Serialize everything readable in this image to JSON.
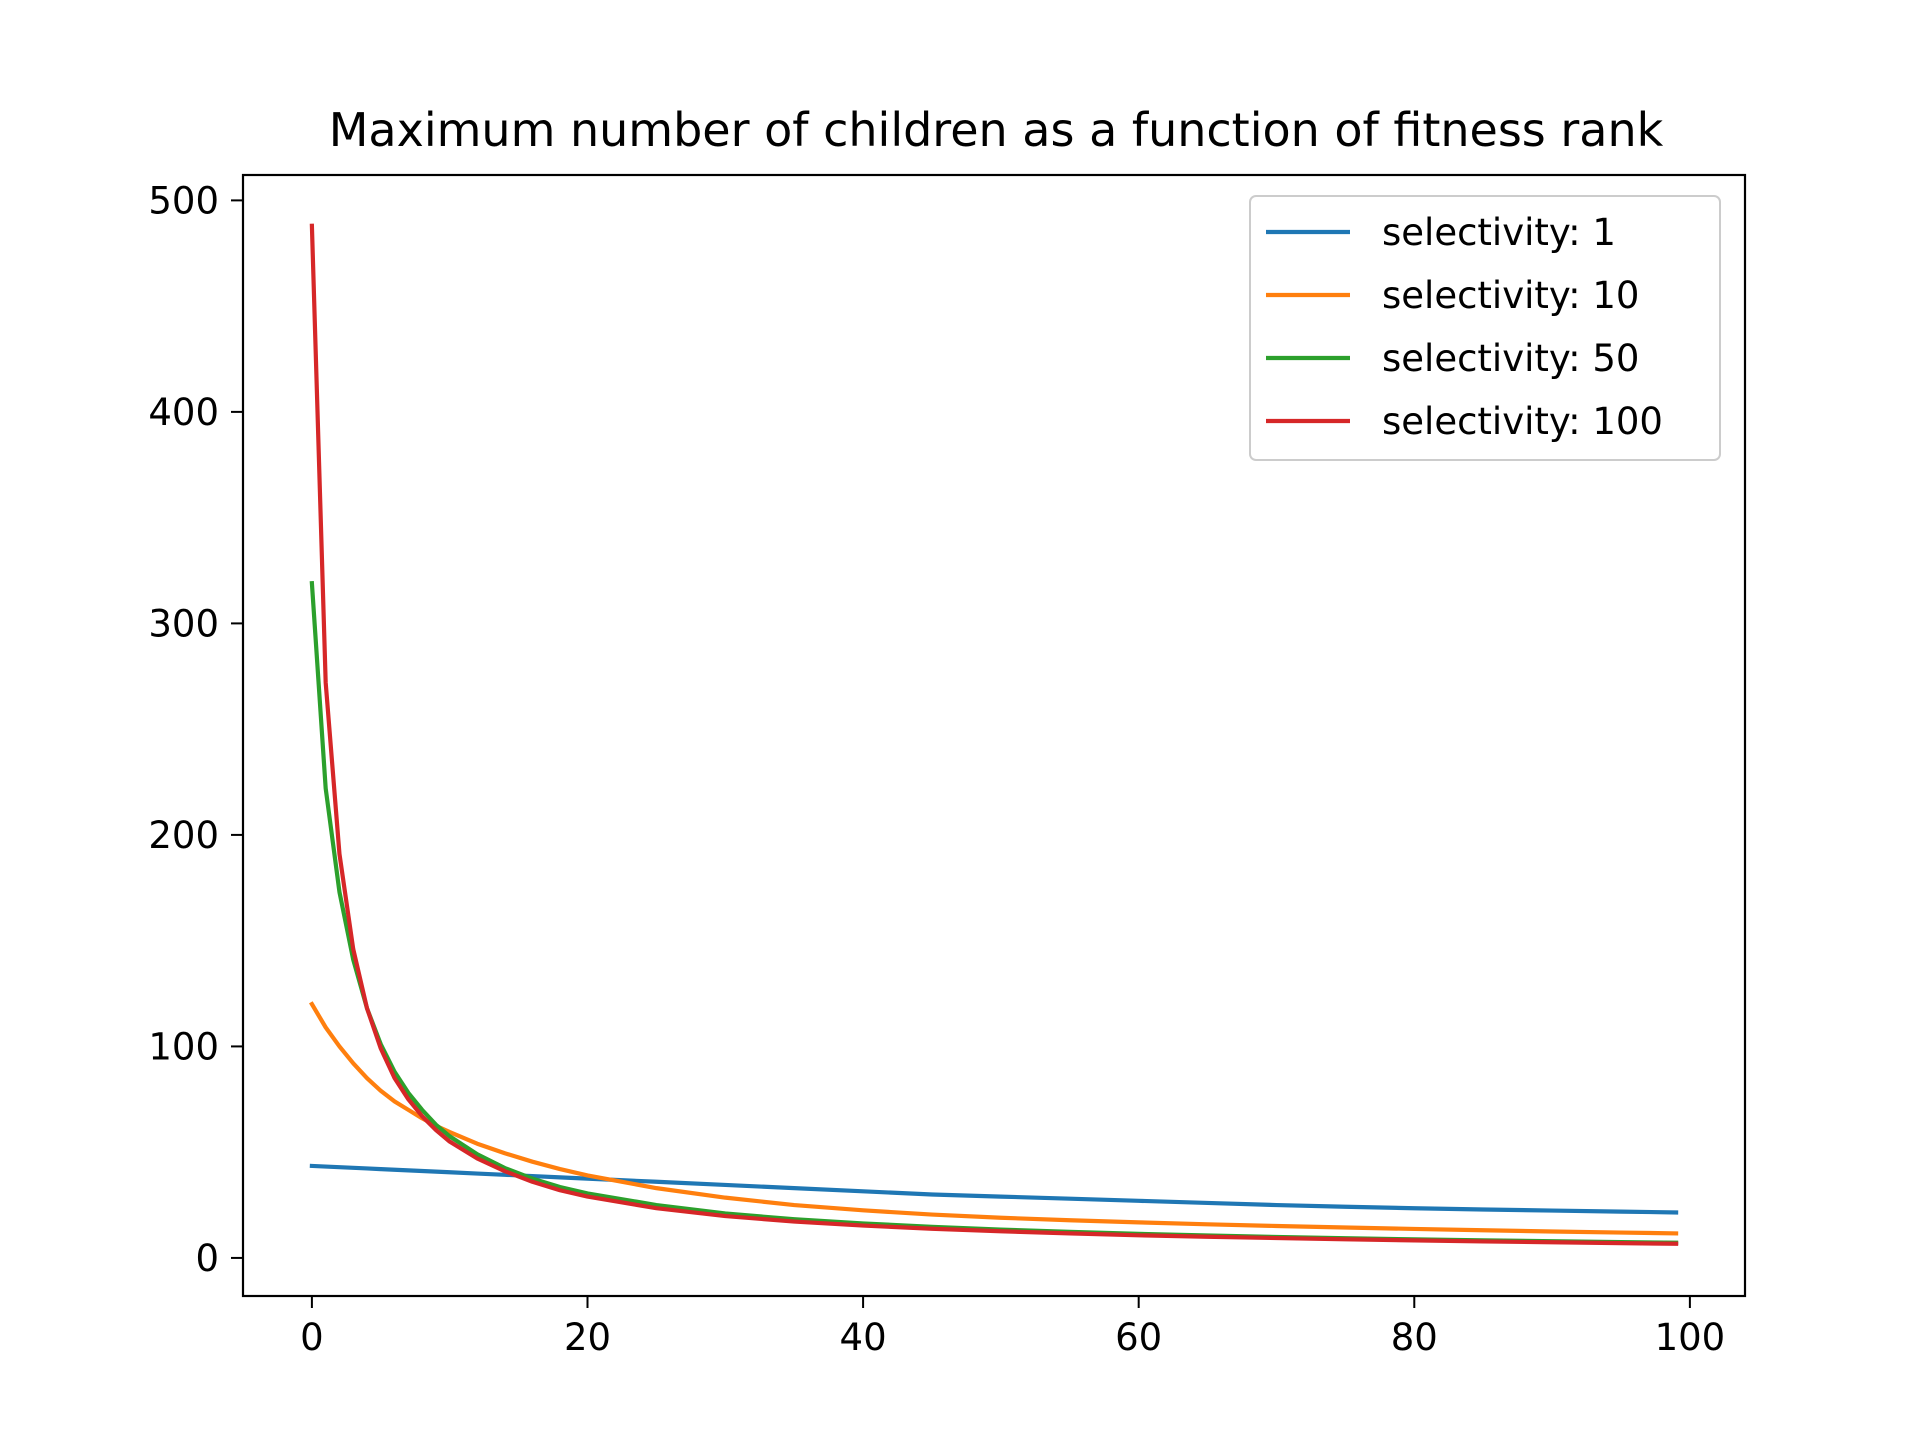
{
  "chart_data": {
    "type": "line",
    "title": "Maximum number of children as a function of fitness rank",
    "xlabel": "",
    "ylabel": "",
    "xlim": [
      -5,
      104
    ],
    "ylim": [
      -18,
      512
    ],
    "xticks": [
      0,
      20,
      40,
      60,
      80,
      100
    ],
    "yticks": [
      0,
      100,
      200,
      300,
      400,
      500
    ],
    "x": [
      0,
      1,
      2,
      3,
      4,
      5,
      6,
      7,
      8,
      9,
      10,
      12,
      14,
      16,
      18,
      20,
      25,
      30,
      35,
      40,
      45,
      50,
      55,
      60,
      65,
      70,
      75,
      80,
      85,
      90,
      95,
      99
    ],
    "series": [
      {
        "name": "selectivity: 1",
        "color": "#1f77b4",
        "values": [
          43.5,
          43.2,
          42.9,
          42.6,
          42.3,
          42.0,
          41.7,
          41.4,
          41.1,
          40.8,
          40.5,
          39.9,
          39.3,
          38.7,
          38.1,
          37.5,
          36.0,
          34.5,
          33.0,
          31.5,
          30.0,
          29.0,
          28.0,
          27.0,
          26.0,
          25.0,
          24.2,
          23.5,
          22.9,
          22.4,
          21.9,
          21.5
        ]
      },
      {
        "name": "selectivity: 10",
        "color": "#ff7f0e",
        "values": [
          120,
          109,
          100,
          92,
          85,
          79,
          74,
          70,
          66,
          62.5,
          59.5,
          54,
          49.5,
          45.5,
          42,
          39,
          33,
          28.5,
          25,
          22.5,
          20.5,
          19,
          17.8,
          16.8,
          15.9,
          15.1,
          14.4,
          13.7,
          13.1,
          12.5,
          12.0,
          11.6
        ]
      },
      {
        "name": "selectivity: 50",
        "color": "#2ca02c",
        "values": [
          319,
          222,
          173,
          141,
          118,
          101,
          88,
          78,
          70,
          63,
          57.5,
          49,
          42.5,
          37.5,
          33.5,
          30.5,
          25,
          21,
          18.3,
          16.3,
          14.7,
          13.4,
          12.3,
          11.4,
          10.6,
          9.9,
          9.3,
          8.8,
          8.3,
          7.9,
          7.5,
          7.2
        ]
      },
      {
        "name": "selectivity: 100",
        "color": "#d62728",
        "values": [
          488,
          272,
          191,
          146,
          118,
          99,
          85,
          75,
          67,
          60.5,
          55,
          47,
          41,
          36,
          32,
          29,
          23.5,
          19.8,
          17.2,
          15.3,
          13.8,
          12.6,
          11.6,
          10.7,
          10.0,
          9.4,
          8.8,
          8.3,
          7.8,
          7.4,
          7.0,
          6.7
        ]
      }
    ],
    "grid": false,
    "legend_position": "upper right"
  }
}
